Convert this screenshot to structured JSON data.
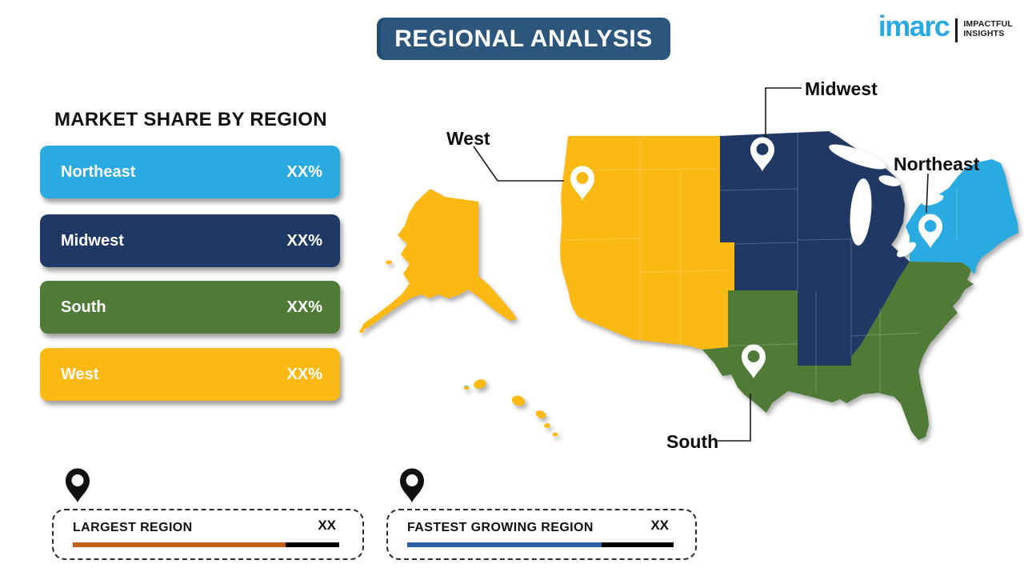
{
  "header": {
    "title": "REGIONAL ANALYSIS",
    "bar_color": "#2C567C"
  },
  "logo": {
    "brand": "imarc",
    "brand_color": "#29ABE2",
    "tagline_line1": "IMPACTFUL",
    "tagline_line2": "INSIGHTS"
  },
  "legend": {
    "title": "MARKET SHARE BY REGION",
    "items": [
      {
        "label": "Northeast",
        "value": "XX%",
        "color": "#29ABE2"
      },
      {
        "label": "Midwest",
        "value": "XX%",
        "color": "#1F3864"
      },
      {
        "label": "South",
        "value": "XX%",
        "color": "#4F7B36"
      },
      {
        "label": "West",
        "value": "XX%",
        "color": "#FCB913"
      }
    ]
  },
  "map": {
    "labels": {
      "west": "West",
      "midwest": "Midwest",
      "northeast": "Northeast",
      "south": "South"
    }
  },
  "indicators": [
    {
      "label": "LARGEST REGION",
      "value": "XX",
      "bar_color": "#C2611B",
      "bar_fill_pct": 80
    },
    {
      "label": "FASTEST GROWING REGION",
      "value": "XX",
      "bar_color": "#2E5FA5",
      "bar_fill_pct": 73
    }
  ],
  "chart_data": {
    "type": "choropleth-map",
    "title": "REGIONAL ANALYSIS",
    "legend_title": "MARKET SHARE BY REGION",
    "regions": [
      {
        "name": "Northeast",
        "share": "XX%",
        "color": "#29ABE2"
      },
      {
        "name": "Midwest",
        "share": "XX%",
        "color": "#1F3864"
      },
      {
        "name": "South",
        "share": "XX%",
        "color": "#4F7B36"
      },
      {
        "name": "West",
        "share": "XX%",
        "color": "#FCB913"
      }
    ],
    "callouts": [
      {
        "label": "LARGEST REGION",
        "value": "XX"
      },
      {
        "label": "FASTEST GROWING REGION",
        "value": "XX"
      }
    ]
  }
}
